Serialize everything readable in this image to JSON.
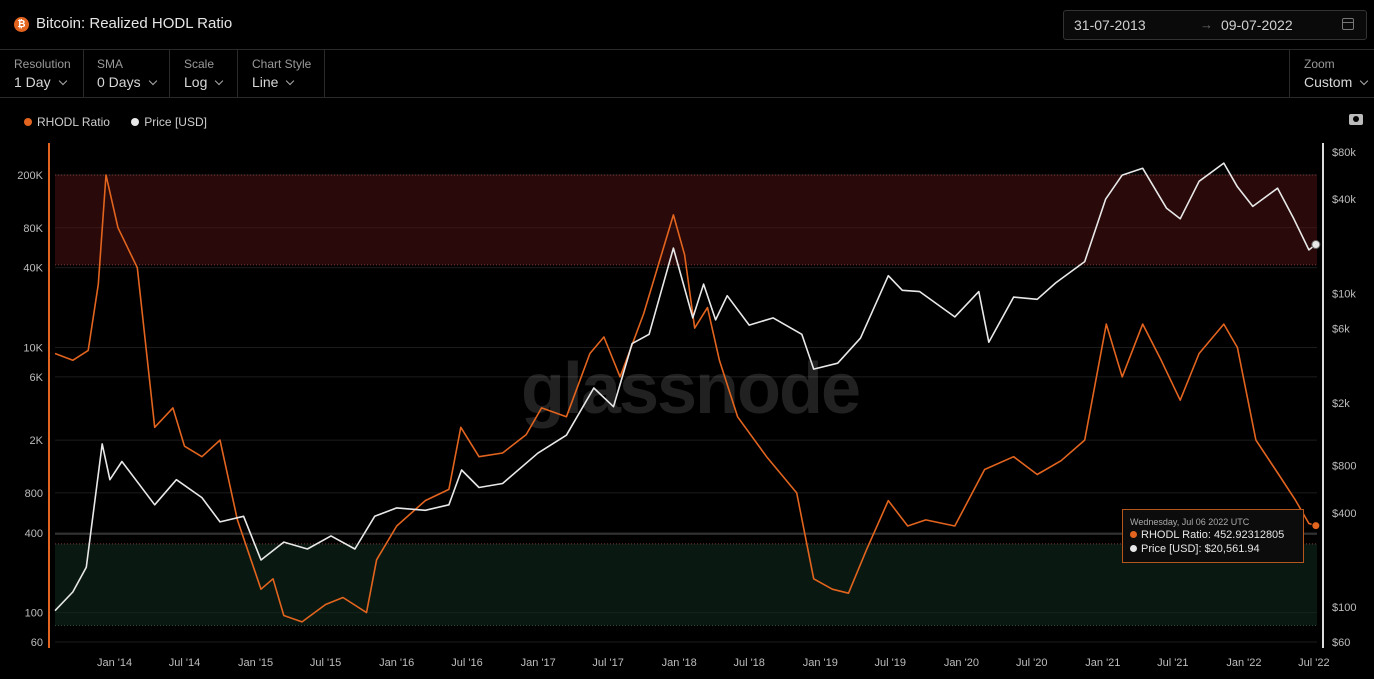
{
  "header": {
    "logo": "₿",
    "title": "Bitcoin: Realized HODL Ratio"
  },
  "date_range": {
    "start": "31-07-2013",
    "arrow": "→",
    "end": "09-07-2022"
  },
  "controls": {
    "resolution": {
      "label": "Resolution",
      "value": "1 Day"
    },
    "sma": {
      "label": "SMA",
      "value": "0 Days"
    },
    "scale": {
      "label": "Scale",
      "value": "Log"
    },
    "chart_style": {
      "label": "Chart Style",
      "value": "Line"
    },
    "zoom": {
      "label": "Zoom",
      "value": "Custom"
    }
  },
  "legend": [
    {
      "name": "RHODL Ratio",
      "color": "#e2641e"
    },
    {
      "name": "Price [USD]",
      "color": "#e8e8e8"
    }
  ],
  "watermark": "glassnode",
  "tooltip": {
    "date": "Wednesday, Jul 06 2022 UTC",
    "rhodl": "RHODL Ratio: 452.92312805",
    "price": "Price [USD]: $20,561.94"
  },
  "colors": {
    "rhodl": "#e2641e",
    "price": "#e8e8e8",
    "upper_band": "#5a1515",
    "lower_band": "#0f2a1c"
  },
  "icons": {
    "logo": "bitcoin-logo-icon",
    "calendar": "calendar-icon",
    "camera": "camera-icon"
  },
  "chart_data": {
    "type": "line",
    "x_start": "2013-07-31",
    "x_end": "2022-07-09",
    "x_tick_labels": [
      "Jan '14",
      "Jul '14",
      "Jan '15",
      "Jul '15",
      "Jan '16",
      "Jul '16",
      "Jan '17",
      "Jul '17",
      "Jan '18",
      "Jul '18",
      "Jan '19",
      "Jul '19",
      "Jan '20",
      "Jul '20",
      "Jan '21",
      "Jul '21",
      "Jan '22",
      "Jul '22"
    ],
    "x_tick_dates": [
      "2014-01-01",
      "2014-07-01",
      "2015-01-01",
      "2015-07-01",
      "2016-01-01",
      "2016-07-01",
      "2017-01-01",
      "2017-07-01",
      "2018-01-01",
      "2018-07-01",
      "2019-01-01",
      "2019-07-01",
      "2020-01-01",
      "2020-07-01",
      "2021-01-01",
      "2021-07-01",
      "2022-01-01",
      "2022-07-01"
    ],
    "y_left": {
      "scale": "log",
      "range": [
        60,
        300000
      ],
      "ticks": [
        60,
        100,
        400,
        800,
        2000,
        6000,
        10000,
        40000,
        80000,
        200000
      ],
      "tick_labels": [
        "60",
        "100",
        "400",
        "800",
        "2K",
        "6K",
        "10K",
        "40K",
        "80K",
        "200K"
      ]
    },
    "y_right": {
      "scale": "log",
      "range": [
        60,
        100000
      ],
      "ticks": [
        60,
        100,
        400,
        800,
        2000,
        6000,
        10000,
        40000,
        80000
      ],
      "tick_labels": [
        "$60",
        "$100",
        "$400",
        "$800",
        "$2k",
        "$6k",
        "$10k",
        "$40k",
        "$80k"
      ]
    },
    "bands": [
      {
        "name": "upper",
        "y_range": [
          42000,
          200000
        ]
      },
      {
        "name": "lower",
        "y_range": [
          80,
          330
        ]
      }
    ],
    "series": [
      {
        "name": "RHODL Ratio",
        "axis": "left",
        "points": [
          [
            "2013-07-31",
            9000
          ],
          [
            "2013-09-15",
            8000
          ],
          [
            "2013-10-25",
            9500
          ],
          [
            "2013-11-20",
            30000
          ],
          [
            "2013-12-10",
            200000
          ],
          [
            "2014-01-10",
            80000
          ],
          [
            "2014-03-01",
            40000
          ],
          [
            "2014-04-15",
            2500
          ],
          [
            "2014-06-01",
            3500
          ],
          [
            "2014-07-01",
            1800
          ],
          [
            "2014-08-15",
            1500
          ],
          [
            "2014-10-01",
            2000
          ],
          [
            "2014-11-15",
            500
          ],
          [
            "2015-01-15",
            150
          ],
          [
            "2015-02-15",
            180
          ],
          [
            "2015-03-15",
            95
          ],
          [
            "2015-05-01",
            85
          ],
          [
            "2015-07-01",
            115
          ],
          [
            "2015-08-15",
            130
          ],
          [
            "2015-10-15",
            100
          ],
          [
            "2015-11-10",
            250
          ],
          [
            "2016-01-01",
            450
          ],
          [
            "2016-03-15",
            700
          ],
          [
            "2016-05-15",
            850
          ],
          [
            "2016-06-15",
            2500
          ],
          [
            "2016-08-01",
            1500
          ],
          [
            "2016-10-01",
            1600
          ],
          [
            "2016-12-01",
            2200
          ],
          [
            "2017-01-10",
            3500
          ],
          [
            "2017-03-15",
            3000
          ],
          [
            "2017-05-15",
            9000
          ],
          [
            "2017-06-20",
            12000
          ],
          [
            "2017-08-01",
            6000
          ],
          [
            "2017-10-01",
            18000
          ],
          [
            "2017-12-17",
            100000
          ],
          [
            "2018-01-15",
            50000
          ],
          [
            "2018-02-10",
            14000
          ],
          [
            "2018-03-15",
            20000
          ],
          [
            "2018-04-15",
            8000
          ],
          [
            "2018-06-01",
            3000
          ],
          [
            "2018-08-15",
            1500
          ],
          [
            "2018-11-01",
            800
          ],
          [
            "2018-12-15",
            180
          ],
          [
            "2019-02-01",
            150
          ],
          [
            "2019-03-15",
            140
          ],
          [
            "2019-05-01",
            300
          ],
          [
            "2019-06-26",
            700
          ],
          [
            "2019-08-15",
            450
          ],
          [
            "2019-10-01",
            500
          ],
          [
            "2019-12-15",
            450
          ],
          [
            "2020-03-01",
            1200
          ],
          [
            "2020-05-15",
            1500
          ],
          [
            "2020-07-15",
            1100
          ],
          [
            "2020-09-15",
            1400
          ],
          [
            "2020-11-15",
            2000
          ],
          [
            "2021-01-10",
            15000
          ],
          [
            "2021-02-20",
            6000
          ],
          [
            "2021-04-14",
            15000
          ],
          [
            "2021-06-01",
            8000
          ],
          [
            "2021-07-20",
            4000
          ],
          [
            "2021-09-07",
            9000
          ],
          [
            "2021-11-10",
            15000
          ],
          [
            "2021-12-15",
            10000
          ],
          [
            "2022-02-01",
            2000
          ],
          [
            "2022-04-01",
            1100
          ],
          [
            "2022-05-15",
            700
          ],
          [
            "2022-06-18",
            470
          ],
          [
            "2022-07-06",
            452.92
          ]
        ]
      },
      {
        "name": "Price [USD]",
        "axis": "right",
        "points": [
          [
            "2013-07-31",
            95
          ],
          [
            "2013-09-15",
            125
          ],
          [
            "2013-10-20",
            180
          ],
          [
            "2013-11-30",
            1100
          ],
          [
            "2013-12-20",
            650
          ],
          [
            "2014-01-20",
            850
          ],
          [
            "2014-04-15",
            450
          ],
          [
            "2014-06-10",
            650
          ],
          [
            "2014-08-15",
            500
          ],
          [
            "2014-10-01",
            350
          ],
          [
            "2014-12-01",
            380
          ],
          [
            "2015-01-15",
            200
          ],
          [
            "2015-03-15",
            260
          ],
          [
            "2015-05-15",
            235
          ],
          [
            "2015-07-15",
            285
          ],
          [
            "2015-09-15",
            235
          ],
          [
            "2015-11-05",
            380
          ],
          [
            "2016-01-01",
            430
          ],
          [
            "2016-03-15",
            415
          ],
          [
            "2016-05-15",
            450
          ],
          [
            "2016-06-17",
            750
          ],
          [
            "2016-08-01",
            580
          ],
          [
            "2016-10-01",
            615
          ],
          [
            "2016-12-31",
            960
          ],
          [
            "2017-03-15",
            1250
          ],
          [
            "2017-05-25",
            2500
          ],
          [
            "2017-07-15",
            1900
          ],
          [
            "2017-09-01",
            4800
          ],
          [
            "2017-10-15",
            5500
          ],
          [
            "2017-12-17",
            19500
          ],
          [
            "2018-02-05",
            7000
          ],
          [
            "2018-03-05",
            11500
          ],
          [
            "2018-04-05",
            6800
          ],
          [
            "2018-05-05",
            9700
          ],
          [
            "2018-07-01",
            6300
          ],
          [
            "2018-09-01",
            7000
          ],
          [
            "2018-11-14",
            5500
          ],
          [
            "2018-12-15",
            3300
          ],
          [
            "2019-02-15",
            3600
          ],
          [
            "2019-04-15",
            5200
          ],
          [
            "2019-06-26",
            13000
          ],
          [
            "2019-08-01",
            10500
          ],
          [
            "2019-09-15",
            10300
          ],
          [
            "2019-12-15",
            7100
          ],
          [
            "2020-02-15",
            10300
          ],
          [
            "2020-03-12",
            4900
          ],
          [
            "2020-05-15",
            9500
          ],
          [
            "2020-07-15",
            9200
          ],
          [
            "2020-09-01",
            11700
          ],
          [
            "2020-11-15",
            16000
          ],
          [
            "2021-01-08",
            40000
          ],
          [
            "2021-02-20",
            57000
          ],
          [
            "2021-04-14",
            63000
          ],
          [
            "2021-06-15",
            35000
          ],
          [
            "2021-07-20",
            30000
          ],
          [
            "2021-09-07",
            52000
          ],
          [
            "2021-11-10",
            68000
          ],
          [
            "2021-12-15",
            48000
          ],
          [
            "2022-01-24",
            36000
          ],
          [
            "2022-03-29",
            47000
          ],
          [
            "2022-05-10",
            30000
          ],
          [
            "2022-06-18",
            19000
          ],
          [
            "2022-07-06",
            20561.94
          ]
        ]
      }
    ],
    "annotations": [
      "Wednesday, Jul 06 2022 UTC",
      "RHODL Ratio: 452.92312805",
      "Price [USD]: $20,561.94"
    ]
  }
}
